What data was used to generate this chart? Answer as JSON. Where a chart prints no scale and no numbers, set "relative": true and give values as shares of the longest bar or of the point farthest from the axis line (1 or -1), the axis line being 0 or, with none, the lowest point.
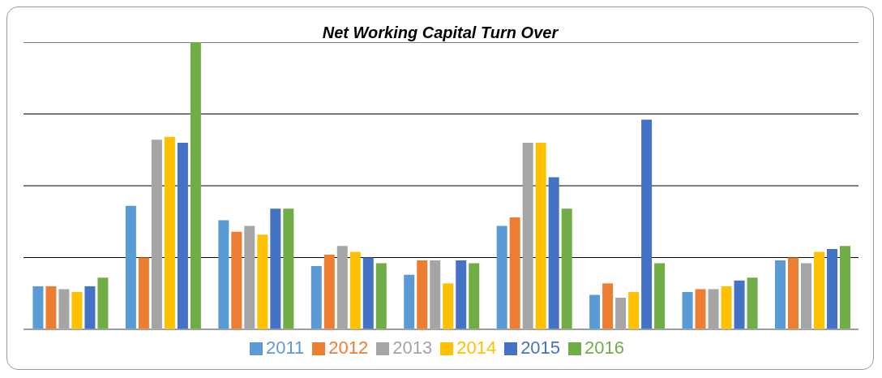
{
  "chart_data": {
    "type": "bar",
    "title": "Net Working Capital Turn Over",
    "relative": true,
    "grid": "y",
    "legend": "bottom",
    "categories": [
      null,
      null,
      null,
      null,
      null,
      null,
      null,
      null,
      null
    ],
    "series": [
      {
        "name": "2011",
        "color": "#5b9bd5",
        "values": [
          0.15,
          0.43,
          0.38,
          0.22,
          0.19,
          0.36,
          0.12,
          0.13,
          0.24
        ]
      },
      {
        "name": "2012",
        "color": "#ed7d31",
        "values": [
          0.15,
          0.25,
          0.34,
          0.26,
          0.24,
          0.39,
          0.16,
          0.14,
          0.25
        ]
      },
      {
        "name": "2013",
        "color": "#a5a5a5",
        "values": [
          0.14,
          0.66,
          0.36,
          0.29,
          0.24,
          0.65,
          0.11,
          0.14,
          0.23
        ]
      },
      {
        "name": "2014",
        "color": "#ffc000",
        "values": [
          0.13,
          0.67,
          0.33,
          0.27,
          0.16,
          0.65,
          0.13,
          0.15,
          0.27
        ]
      },
      {
        "name": "2015",
        "color": "#4472c4",
        "values": [
          0.15,
          0.65,
          0.42,
          0.25,
          0.24,
          0.53,
          0.73,
          0.17,
          0.28
        ]
      },
      {
        "name": "2016",
        "color": "#70ad47",
        "values": [
          0.18,
          1,
          0.42,
          0.23,
          0.23,
          0.42,
          0.23,
          0.18,
          0.29
        ]
      }
    ]
  }
}
